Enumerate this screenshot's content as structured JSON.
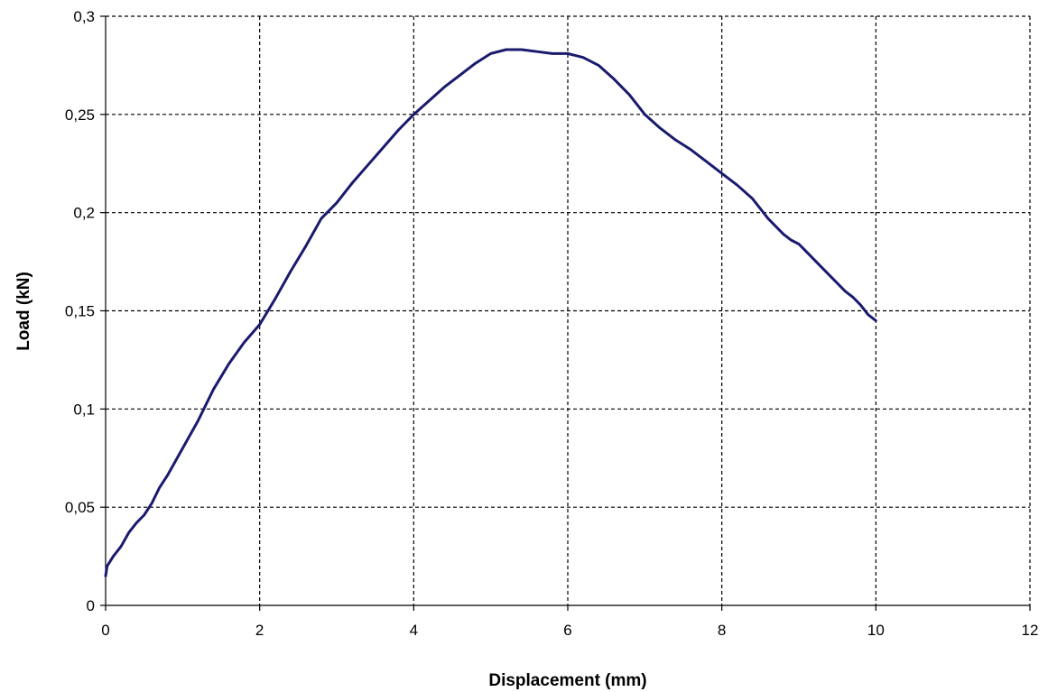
{
  "chart_data": {
    "type": "line",
    "title": "",
    "xlabel": "Displacement (mm)",
    "ylabel": "Load (kN)",
    "xlim": [
      0,
      12
    ],
    "ylim": [
      0,
      0.3
    ],
    "grid": true,
    "grid_style": "dashed",
    "legend": "none",
    "x_ticks": [
      0,
      2,
      4,
      6,
      8,
      10,
      12
    ],
    "x_tick_labels": [
      "0",
      "2",
      "4",
      "6",
      "8",
      "10",
      "12"
    ],
    "y_ticks": [
      0,
      0.05,
      0.1,
      0.15,
      0.2,
      0.25,
      0.3
    ],
    "y_tick_labels": [
      "0",
      "0,05",
      "0,1",
      "0,15",
      "0,2",
      "0,25",
      "0,3"
    ],
    "line_color": "#1a1a6e",
    "series": [
      {
        "x": [
          0,
          0.02,
          0.1,
          0.2,
          0.3,
          0.4,
          0.5,
          0.6,
          0.7,
          0.8,
          0.9,
          1.0,
          1.2,
          1.4,
          1.6,
          1.8,
          2.0,
          2.2,
          2.4,
          2.6,
          2.8,
          3.0,
          3.2,
          3.4,
          3.6,
          3.8,
          4.0,
          4.2,
          4.4,
          4.6,
          4.8,
          5.0,
          5.2,
          5.4,
          5.6,
          5.8,
          6.0,
          6.2,
          6.4,
          6.6,
          6.8,
          7.0,
          7.2,
          7.4,
          7.6,
          7.8,
          8.0,
          8.2,
          8.4,
          8.6,
          8.8,
          8.9,
          9.0,
          9.2,
          9.4,
          9.6,
          9.7,
          9.8,
          9.9,
          10.0
        ],
        "y": [
          0.015,
          0.02,
          0.025,
          0.03,
          0.037,
          0.042,
          0.046,
          0.052,
          0.06,
          0.066,
          0.073,
          0.08,
          0.094,
          0.11,
          0.123,
          0.134,
          0.143,
          0.156,
          0.17,
          0.183,
          0.197,
          0.205,
          0.215,
          0.224,
          0.233,
          0.242,
          0.25,
          0.257,
          0.264,
          0.27,
          0.276,
          0.281,
          0.283,
          0.283,
          0.282,
          0.281,
          0.281,
          0.279,
          0.275,
          0.268,
          0.26,
          0.25,
          0.243,
          0.237,
          0.232,
          0.226,
          0.22,
          0.214,
          0.207,
          0.197,
          0.189,
          0.186,
          0.184,
          0.176,
          0.168,
          0.16,
          0.157,
          0.153,
          0.148,
          0.145
        ]
      }
    ]
  }
}
